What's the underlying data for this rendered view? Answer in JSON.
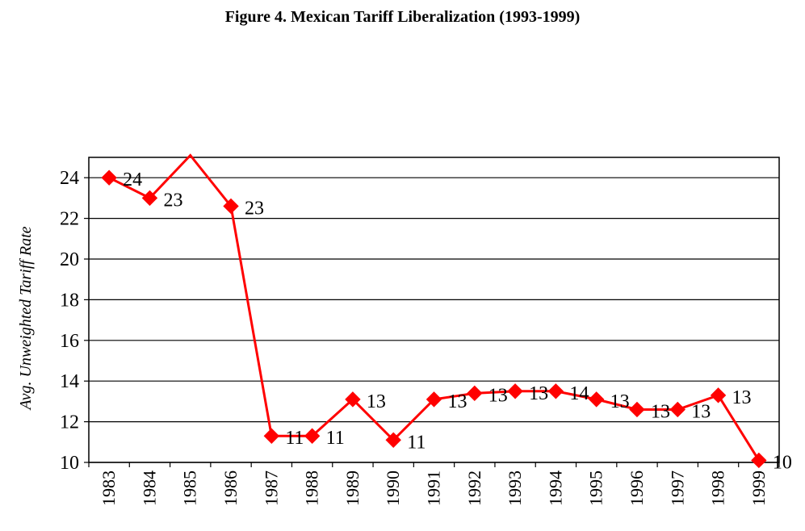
{
  "chart_data": {
    "type": "line",
    "title": "Figure 4. Mexican Tariff Liberalization (1993-1999)",
    "xlabel": "",
    "ylabel": "Avg. Unweighted Tariff Rate",
    "categories": [
      "1983",
      "1984",
      "1985",
      "1986",
      "1987",
      "1988",
      "1989",
      "1990",
      "1991",
      "1992",
      "1993",
      "1994",
      "1995",
      "1996",
      "1997",
      "1998",
      "1999"
    ],
    "series": [
      {
        "values": [
          24,
          23,
          25.1,
          22.6,
          11.3,
          11.3,
          13.1,
          11.1,
          13.1,
          13.4,
          13.5,
          13.5,
          13.1,
          12.6,
          12.6,
          13.3,
          10.1
        ],
        "data_labels": [
          "24",
          "23",
          "",
          "23",
          "11",
          "11",
          "13",
          "11",
          "13",
          "13",
          "13",
          "14",
          "13",
          "13",
          "13",
          "13",
          "10"
        ],
        "color": "#ff0000",
        "marker": "diamond"
      }
    ],
    "ylim": [
      10,
      25
    ],
    "yticks": [
      10,
      12,
      14,
      16,
      18,
      20,
      22,
      24
    ],
    "grid": "horizontal",
    "legend": "none"
  }
}
